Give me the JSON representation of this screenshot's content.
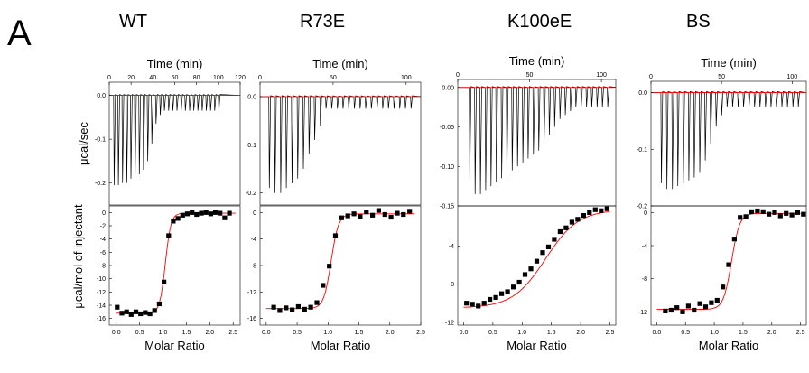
{
  "figure": {
    "panel_letter": "A",
    "colors": {
      "trace": "#000000",
      "fit": "#ff0000",
      "points": "#000000"
    }
  },
  "chart_data": [
    {
      "type": "line",
      "name": "WT",
      "top_xlabel": "Time (min)",
      "top_xticks": [
        "0",
        "20",
        "40",
        "60",
        "80",
        "100",
        "120"
      ],
      "top_xlim": [
        0,
        120
      ],
      "top_ylabel": "μcal/sec",
      "top_yticks": [
        "0.0",
        "-0.1",
        "-0.2"
      ],
      "top_ylim": [
        -0.25,
        0.03
      ],
      "injections": {
        "count": 26,
        "baseline": 0.0,
        "first_depths": [
          -0.205,
          -0.205,
          -0.2,
          -0.2,
          -0.19,
          -0.19,
          -0.18,
          -0.17,
          -0.15,
          -0.11,
          -0.065,
          -0.045
        ],
        "tail_depth": -0.035,
        "x_start": 4,
        "x_end": 100
      },
      "bottom_xlabel": "Molar Ratio",
      "bottom_xticks": [
        "0.0",
        "0.5",
        "1.0",
        "1.5",
        "2.0",
        "2.5"
      ],
      "bottom_xlim": [
        -0.15,
        2.65
      ],
      "bottom_ylabel": "μcal/mol of injectant",
      "bottom_yticks": [
        "0",
        "-2",
        "-4",
        "-6",
        "-8",
        "-10",
        "-12",
        "-14",
        "-16"
      ],
      "bottom_ylim": [
        -17,
        1
      ],
      "points": [
        [
          0.02,
          -14.3
        ],
        [
          0.12,
          -15.2
        ],
        [
          0.22,
          -15.0
        ],
        [
          0.32,
          -15.4
        ],
        [
          0.42,
          -15.0
        ],
        [
          0.52,
          -15.3
        ],
        [
          0.62,
          -15.1
        ],
        [
          0.72,
          -15.3
        ],
        [
          0.82,
          -14.8
        ],
        [
          0.92,
          -13.8
        ],
        [
          1.02,
          -10.5
        ],
        [
          1.12,
          -3.5
        ],
        [
          1.22,
          -1.3
        ],
        [
          1.32,
          -0.9
        ],
        [
          1.42,
          -0.4
        ],
        [
          1.52,
          -0.2
        ],
        [
          1.62,
          0.0
        ],
        [
          1.72,
          -0.3
        ],
        [
          1.82,
          -0.1
        ],
        [
          1.92,
          0.0
        ],
        [
          2.02,
          -0.2
        ],
        [
          2.12,
          0.0
        ],
        [
          2.22,
          -0.1
        ],
        [
          2.32,
          -0.8
        ],
        [
          2.42,
          -0.1
        ]
      ],
      "fit": {
        "dh": -15.2,
        "n": 1.05,
        "width": 0.06,
        "top": -0.1
      }
    },
    {
      "type": "line",
      "name": "R73E",
      "top_xlabel": "Time (min)",
      "top_xticks": [
        "0",
        "50",
        "100"
      ],
      "top_xlim": [
        0,
        110
      ],
      "top_ylabel": "",
      "top_yticks": [
        "0.0",
        "-0.1",
        "-0.2"
      ],
      "top_ylim": [
        -0.225,
        0.03
      ],
      "injections": {
        "count": 26,
        "baseline": 0.0,
        "first_depths": [
          -0.19,
          -0.2,
          -0.2,
          -0.19,
          -0.18,
          -0.17,
          -0.15,
          -0.12,
          -0.09,
          -0.06
        ],
        "tail_depth": -0.025,
        "x_start": 6,
        "x_end": 103
      },
      "bottom_xlabel": "Molar Ratio",
      "bottom_xticks": [
        "0.0",
        "0.5",
        "1.0",
        "1.5",
        "2.0",
        "2.5"
      ],
      "bottom_xlim": [
        -0.1,
        2.5
      ],
      "bottom_ylabel": "",
      "bottom_yticks": [
        "0",
        "-4",
        "-8",
        "-12",
        "-16"
      ],
      "bottom_ylim": [
        -17,
        1
      ],
      "points": [
        [
          0.12,
          -14.3
        ],
        [
          0.22,
          -14.8
        ],
        [
          0.32,
          -14.4
        ],
        [
          0.42,
          -14.7
        ],
        [
          0.52,
          -14.2
        ],
        [
          0.62,
          -14.6
        ],
        [
          0.72,
          -14.3
        ],
        [
          0.82,
          -13.6
        ],
        [
          0.92,
          -11.0
        ],
        [
          1.02,
          -8.1
        ],
        [
          1.12,
          -3.5
        ],
        [
          1.22,
          -0.8
        ],
        [
          1.32,
          -0.5
        ],
        [
          1.42,
          -0.2
        ],
        [
          1.52,
          -0.6
        ],
        [
          1.62,
          0.1
        ],
        [
          1.72,
          -0.4
        ],
        [
          1.82,
          0.3
        ],
        [
          1.92,
          -0.3
        ],
        [
          2.02,
          -0.7
        ],
        [
          2.12,
          -0.1
        ],
        [
          2.22,
          -0.3
        ],
        [
          2.32,
          0.2
        ]
      ],
      "fit": {
        "dh": -14.5,
        "n": 1.05,
        "width": 0.06,
        "top": -0.2
      }
    },
    {
      "type": "line",
      "name": "K100eE",
      "top_xlabel": "Time (min)",
      "top_xticks": [
        "0",
        "50",
        "100"
      ],
      "top_xlim": [
        0,
        110
      ],
      "top_ylabel": "",
      "top_yticks": [
        "0.00",
        "-0.05",
        "-0.10",
        "-0.15"
      ],
      "top_ylim": [
        -0.15,
        0.01
      ],
      "injections": {
        "count": 27,
        "baseline": 0.0,
        "first_depths": [
          -0.115,
          -0.135,
          -0.135,
          -0.13,
          -0.125,
          -0.12,
          -0.115,
          -0.11,
          -0.105,
          -0.1,
          -0.095,
          -0.09,
          -0.085,
          -0.08,
          -0.07,
          -0.06,
          -0.05,
          -0.04,
          -0.035,
          -0.03
        ],
        "tail_depth": -0.025,
        "x_start": 8,
        "x_end": 104
      },
      "bottom_xlabel": "Molar Ratio",
      "bottom_xticks": [
        "0.0",
        "0.5",
        "1.0",
        "1.5",
        "2.0",
        "2.5"
      ],
      "bottom_xlim": [
        -0.1,
        2.6
      ],
      "bottom_ylabel": "",
      "bottom_yticks": [
        "-4",
        "-8",
        "-12"
      ],
      "bottom_ylim": [
        -12.3,
        0.2
      ],
      "points": [
        [
          0.05,
          -10.0
        ],
        [
          0.15,
          -10.1
        ],
        [
          0.25,
          -10.3
        ],
        [
          0.35,
          -10.0
        ],
        [
          0.45,
          -9.6
        ],
        [
          0.55,
          -9.4
        ],
        [
          0.65,
          -9.0
        ],
        [
          0.75,
          -8.8
        ],
        [
          0.85,
          -8.3
        ],
        [
          0.95,
          -7.8
        ],
        [
          1.05,
          -7.0
        ],
        [
          1.15,
          -6.4
        ],
        [
          1.25,
          -5.6
        ],
        [
          1.35,
          -4.7
        ],
        [
          1.45,
          -4.1
        ],
        [
          1.55,
          -3.3
        ],
        [
          1.65,
          -2.5
        ],
        [
          1.75,
          -2.1
        ],
        [
          1.85,
          -1.5
        ],
        [
          1.95,
          -1.2
        ],
        [
          2.05,
          -0.8
        ],
        [
          2.15,
          -0.5
        ],
        [
          2.25,
          -0.2
        ],
        [
          2.35,
          -0.3
        ],
        [
          2.45,
          -0.1
        ]
      ],
      "fit": {
        "dh": -10.5,
        "n": 1.4,
        "width": 0.28,
        "top": -0.2
      }
    },
    {
      "type": "line",
      "name": "BS",
      "top_xlabel": "Time (min)",
      "top_xticks": [
        "0",
        "50",
        "100"
      ],
      "top_xlim": [
        0,
        110
      ],
      "top_ylabel": "",
      "top_yticks": [
        "0.0",
        "-0.1",
        "-0.2"
      ],
      "top_ylim": [
        -0.2,
        0.02
      ],
      "injections": {
        "count": 26,
        "baseline": 0.0,
        "first_depths": [
          -0.16,
          -0.17,
          -0.17,
          -0.165,
          -0.16,
          -0.155,
          -0.15,
          -0.14,
          -0.12,
          -0.09,
          -0.06,
          -0.04
        ],
        "tail_depth": -0.025,
        "x_start": 7,
        "x_end": 104
      },
      "bottom_xlabel": "Molar Ratio",
      "bottom_xticks": [
        "0.0",
        "0.5",
        "1.0",
        "1.5",
        "2.0",
        "2.5"
      ],
      "bottom_xlim": [
        -0.1,
        2.6
      ],
      "bottom_ylabel": "",
      "bottom_yticks": [
        "0",
        "-4",
        "-8",
        "-12"
      ],
      "bottom_ylim": [
        -13.6,
        0.8
      ],
      "points": [
        [
          0.15,
          -11.9
        ],
        [
          0.25,
          -11.8
        ],
        [
          0.35,
          -11.5
        ],
        [
          0.45,
          -12.0
        ],
        [
          0.55,
          -11.3
        ],
        [
          0.65,
          -11.8
        ],
        [
          0.75,
          -11.0
        ],
        [
          0.85,
          -11.4
        ],
        [
          0.95,
          -10.9
        ],
        [
          1.05,
          -10.6
        ],
        [
          1.15,
          -9.0
        ],
        [
          1.25,
          -6.3
        ],
        [
          1.35,
          -3.2
        ],
        [
          1.45,
          -0.6
        ],
        [
          1.55,
          -0.5
        ],
        [
          1.65,
          0.1
        ],
        [
          1.75,
          0.2
        ],
        [
          1.85,
          0.1
        ],
        [
          1.95,
          -0.2
        ],
        [
          2.05,
          0.0
        ],
        [
          2.15,
          -0.4
        ],
        [
          2.25,
          -0.1
        ],
        [
          2.35,
          -0.3
        ],
        [
          2.45,
          0.0
        ],
        [
          2.55,
          -0.2
        ]
      ],
      "fit": {
        "dh": -11.7,
        "n": 1.3,
        "width": 0.07,
        "top": -0.1
      }
    }
  ]
}
